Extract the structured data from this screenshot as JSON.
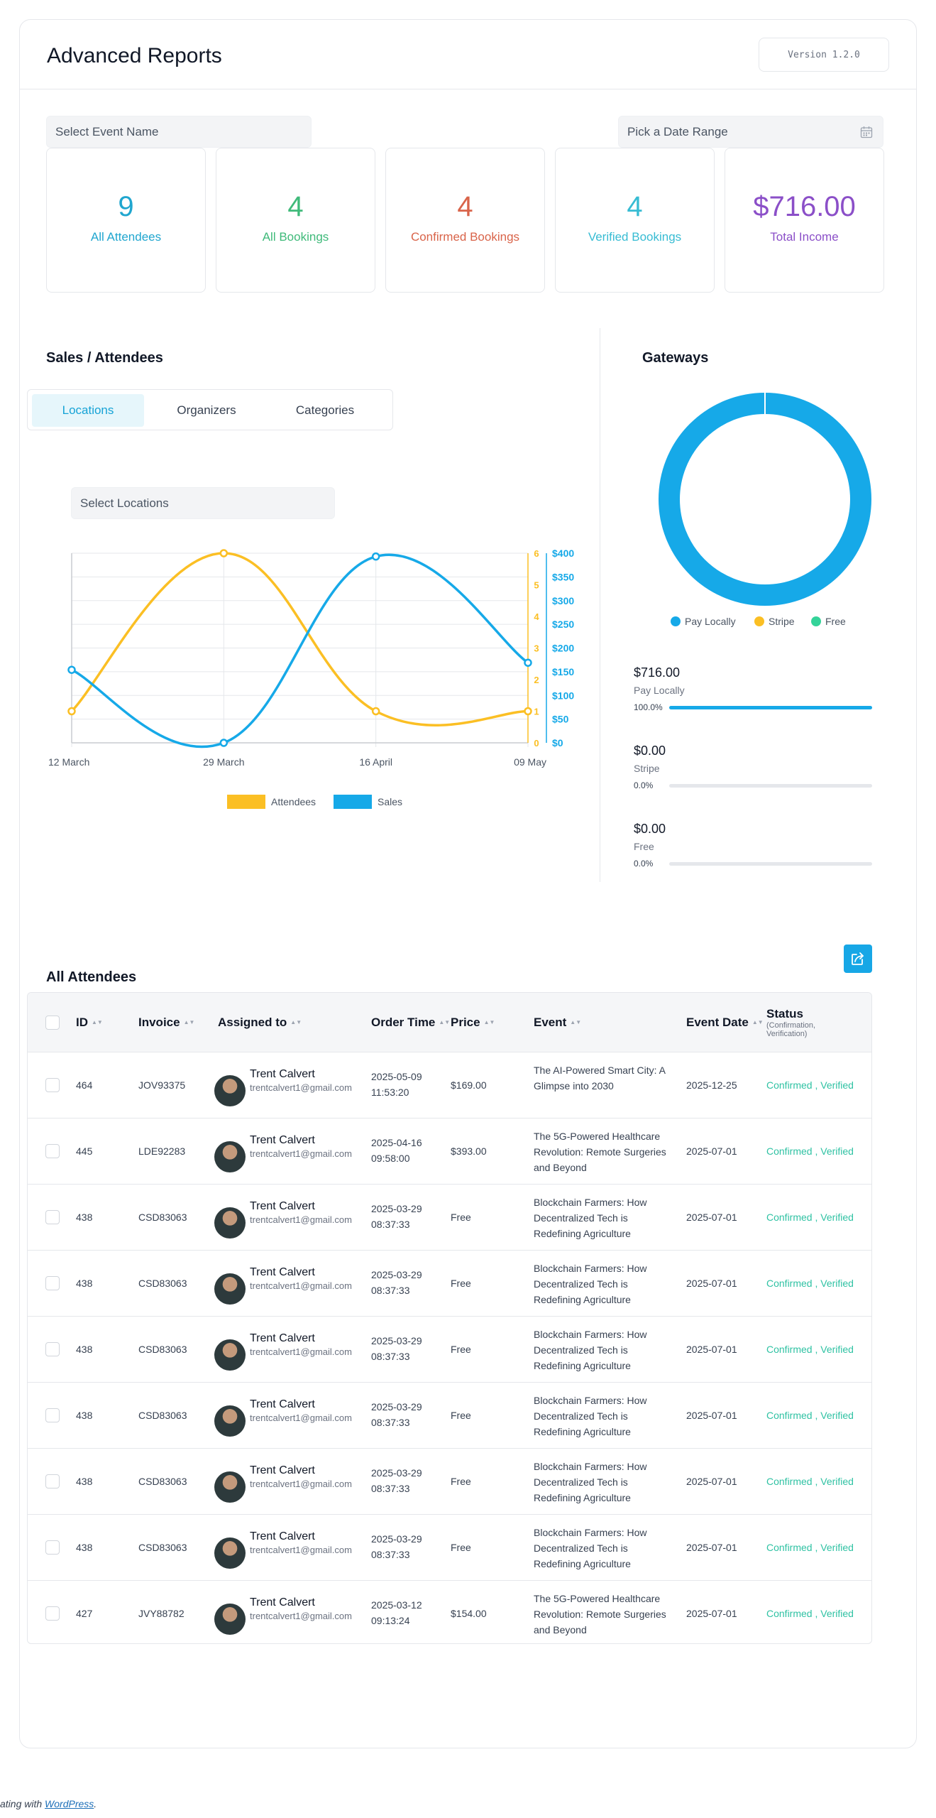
{
  "header": {
    "title": "Advanced Reports",
    "version": "Version 1.2.0"
  },
  "filters": {
    "event_placeholder": "Select Event Name",
    "date_placeholder": "Pick a Date Range"
  },
  "stats": [
    {
      "value": "9",
      "label": "All Attendees",
      "color": "#20a6cf"
    },
    {
      "value": "4",
      "label": "All Bookings",
      "color": "#3fba7a"
    },
    {
      "value": "4",
      "label": "Confirmed Bookings",
      "color": "#d9644a"
    },
    {
      "value": "4",
      "label": "Verified Bookings",
      "color": "#37bcd3"
    },
    {
      "value": "$716.00",
      "label": "Total Income",
      "color": "#8b4fc8"
    }
  ],
  "sales": {
    "title": "Sales / Attendees",
    "tabs": [
      "Locations",
      "Organizers",
      "Categories"
    ],
    "active_tab": 0,
    "locations_placeholder": "Select Locations"
  },
  "chart_data": {
    "type": "line",
    "x": [
      "12 March",
      "29 March",
      "16 April",
      "09 May"
    ],
    "series": [
      {
        "name": "Attendees",
        "values": [
          1,
          6,
          1,
          1
        ],
        "color": "#fbbf24",
        "axis": "left"
      },
      {
        "name": "Sales",
        "values": [
          154,
          0,
          393,
          169
        ],
        "color": "#16a9e8",
        "axis": "right"
      }
    ],
    "y_left": {
      "ticks": [
        "0",
        "1",
        "2",
        "3",
        "4",
        "5",
        "6"
      ],
      "ylim": [
        0,
        6
      ]
    },
    "y_right": {
      "ticks": [
        "$0",
        "$50",
        "$100",
        "$150",
        "$200",
        "$250",
        "$300",
        "$350",
        "$400"
      ],
      "ylim": [
        0,
        400
      ]
    },
    "legend": "bottom",
    "grid": true
  },
  "gateways": {
    "title": "Gateways",
    "chart_data": {
      "type": "pie",
      "labels": [
        "Pay Locally",
        "Stripe",
        "Free"
      ],
      "values": [
        716,
        0,
        0
      ],
      "colors": [
        "#16a9e8",
        "#fbbf24",
        "#34d399"
      ]
    },
    "items": [
      {
        "value": "$716.00",
        "label": "Pay Locally",
        "pct": "100.0%",
        "fraction": 1.0
      },
      {
        "value": "$0.00",
        "label": "Stripe",
        "pct": "0.0%",
        "fraction": 0.0
      },
      {
        "value": "$0.00",
        "label": "Free",
        "pct": "0.0%",
        "fraction": 0.0
      }
    ]
  },
  "attendees": {
    "title": "All Attendees",
    "columns": {
      "id": "ID",
      "invoice": "Invoice",
      "assigned": "Assigned to",
      "order_time": "Order Time",
      "price": "Price",
      "event": "Event",
      "event_date": "Event Date",
      "status": "Status",
      "status_sub": "(Confirmation, Verification)"
    },
    "rows": [
      {
        "id": "464",
        "invoice": "JOV93375",
        "name": "Trent Calvert",
        "email": "trentcalvert1@gmail.com",
        "order_date": "2025-05-09",
        "order_time": "11:53:20",
        "price": "$169.00",
        "event": "The AI-Powered Smart City: A Glimpse into 2030",
        "event_date": "2025-12-25",
        "status": "Confirmed , Verified"
      },
      {
        "id": "445",
        "invoice": "LDE92283",
        "name": "Trent Calvert",
        "email": "trentcalvert1@gmail.com",
        "order_date": "2025-04-16",
        "order_time": "09:58:00",
        "price": "$393.00",
        "event": "The 5G-Powered Healthcare Revolution: Remote Surgeries and Beyond",
        "event_date": "2025-07-01",
        "status": "Confirmed , Verified"
      },
      {
        "id": "438",
        "invoice": "CSD83063",
        "name": "Trent Calvert",
        "email": "trentcalvert1@gmail.com",
        "order_date": "2025-03-29",
        "order_time": "08:37:33",
        "price": "Free",
        "event": "Blockchain Farmers: How Decentralized Tech is Redefining Agriculture",
        "event_date": "2025-07-01",
        "status": "Confirmed , Verified"
      },
      {
        "id": "438",
        "invoice": "CSD83063",
        "name": "Trent Calvert",
        "email": "trentcalvert1@gmail.com",
        "order_date": "2025-03-29",
        "order_time": "08:37:33",
        "price": "Free",
        "event": "Blockchain Farmers: How Decentralized Tech is Redefining Agriculture",
        "event_date": "2025-07-01",
        "status": "Confirmed , Verified"
      },
      {
        "id": "438",
        "invoice": "CSD83063",
        "name": "Trent Calvert",
        "email": "trentcalvert1@gmail.com",
        "order_date": "2025-03-29",
        "order_time": "08:37:33",
        "price": "Free",
        "event": "Blockchain Farmers: How Decentralized Tech is Redefining Agriculture",
        "event_date": "2025-07-01",
        "status": "Confirmed , Verified"
      },
      {
        "id": "438",
        "invoice": "CSD83063",
        "name": "Trent Calvert",
        "email": "trentcalvert1@gmail.com",
        "order_date": "2025-03-29",
        "order_time": "08:37:33",
        "price": "Free",
        "event": "Blockchain Farmers: How Decentralized Tech is Redefining Agriculture",
        "event_date": "2025-07-01",
        "status": "Confirmed , Verified"
      },
      {
        "id": "438",
        "invoice": "CSD83063",
        "name": "Trent Calvert",
        "email": "trentcalvert1@gmail.com",
        "order_date": "2025-03-29",
        "order_time": "08:37:33",
        "price": "Free",
        "event": "Blockchain Farmers: How Decentralized Tech is Redefining Agriculture",
        "event_date": "2025-07-01",
        "status": "Confirmed , Verified"
      },
      {
        "id": "438",
        "invoice": "CSD83063",
        "name": "Trent Calvert",
        "email": "trentcalvert1@gmail.com",
        "order_date": "2025-03-29",
        "order_time": "08:37:33",
        "price": "Free",
        "event": "Blockchain Farmers: How Decentralized Tech is Redefining Agriculture",
        "event_date": "2025-07-01",
        "status": "Confirmed , Verified"
      },
      {
        "id": "427",
        "invoice": "JVY88782",
        "name": "Trent Calvert",
        "email": "trentcalvert1@gmail.com",
        "order_date": "2025-03-12",
        "order_time": "09:13:24",
        "price": "$154.00",
        "event": "The 5G-Powered Healthcare Revolution: Remote Surgeries and Beyond",
        "event_date": "2025-07-01",
        "status": "Confirmed , Verified"
      }
    ]
  },
  "footer": {
    "prefix": "ating with ",
    "link": "WordPress",
    "suffix": "."
  }
}
